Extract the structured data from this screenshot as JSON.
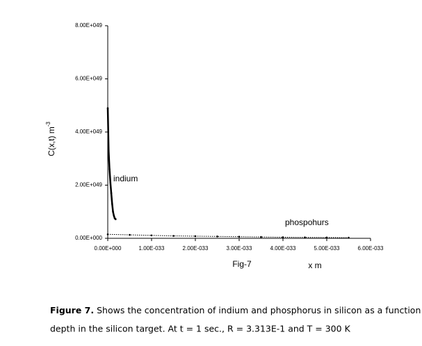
{
  "chart_data": {
    "type": "line",
    "x_label": "x m",
    "y_label": "C(x,t) m",
    "y_label_superscript": "-3",
    "caption_label": "Fig-7",
    "annotations": [
      "indium",
      "phospohurs"
    ],
    "xlim": [
      0,
      6e-33
    ],
    "ylim": [
      0,
      8e+49
    ],
    "xticks": [
      {
        "value": 0,
        "label": "0.00E+000"
      },
      {
        "value": 1e-33,
        "label": "1.00E-033"
      },
      {
        "value": 2e-33,
        "label": "2.00E-033"
      },
      {
        "value": 3e-33,
        "label": "3.00E-033"
      },
      {
        "value": 4e-33,
        "label": "4.00E-033"
      },
      {
        "value": 5e-33,
        "label": "5.00E-033"
      },
      {
        "value": 6e-33,
        "label": "6.00E-033"
      }
    ],
    "yticks": [
      {
        "value": 0,
        "label": "0.00E+000"
      },
      {
        "value": 2e+49,
        "label": "2.00E+049"
      },
      {
        "value": 4e+49,
        "label": "4.00E+049"
      },
      {
        "value": 6e+49,
        "label": "6.00E+049"
      },
      {
        "value": 8e+49,
        "label": "8.00E+049"
      }
    ],
    "series": [
      {
        "color": "#000000",
        "x": [
          0,
          2e-35,
          4e-35,
          6e-35,
          8e-35,
          1e-34,
          1.2e-34,
          1.4e-34,
          1.6e-34,
          1.8e-34
        ],
        "values": [
          4.9e+49,
          3.3e+49,
          2.6e+49,
          2.1e+49,
          1.7e+49,
          1.3e+49,
          1e+49,
          8.5e+48,
          7.5e+48,
          7.2e+48
        ]
      },
      {
        "color": "#000000",
        "x": [
          0,
          5e-34,
          1e-33,
          1.5e-33,
          2e-33,
          2.5e-33,
          3e-33,
          3.5e-33,
          4e-33,
          4.5e-33,
          5e-33,
          5.5e-33
        ],
        "values": [
          1.5e+48,
          1.3e+48,
          1.1e+48,
          9e+47,
          8e+47,
          7e+47,
          6e+47,
          5e+47,
          4e+47,
          3.5e+47,
          3e+47,
          2.5e+47
        ]
      }
    ]
  },
  "figure_caption": {
    "label": "Figure 7.",
    "lines": [
      "Shows the concentration of indium and phosphorus in silicon as a function of the",
      "depth in the silicon target. At t = 1 sec., R = 3.313E-1 and T = 300 K"
    ]
  }
}
